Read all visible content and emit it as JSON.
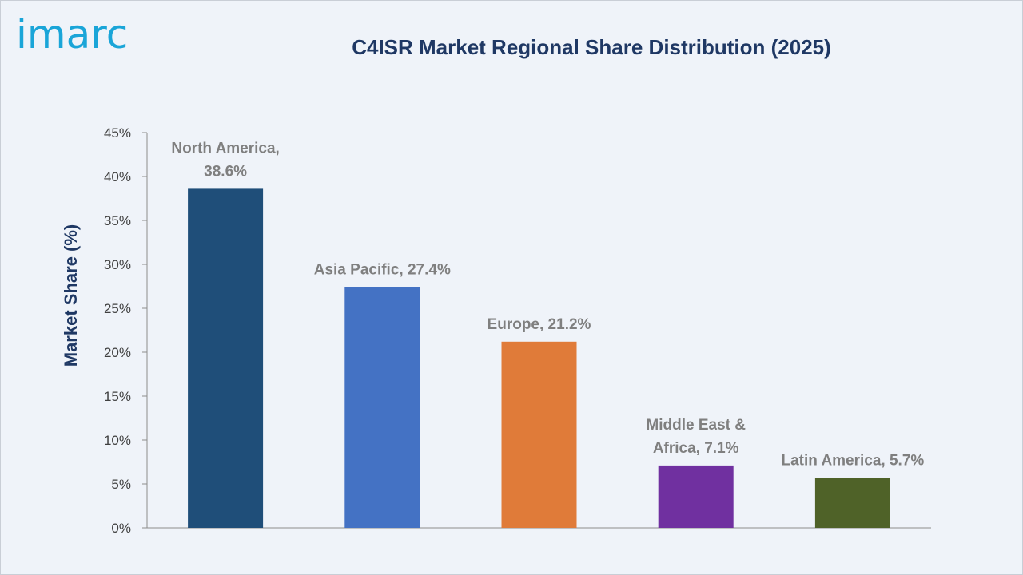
{
  "brand": {
    "logo_text": "imarc",
    "logo_color": "#1aa5d8"
  },
  "chart_data": {
    "type": "bar",
    "title": "C4ISR Market Regional Share Distribution (2025)",
    "ylabel": "Market Share (%)",
    "xlabel": "",
    "ylim": [
      0,
      45
    ],
    "yticks": [
      0,
      5,
      10,
      15,
      20,
      25,
      30,
      35,
      40,
      45
    ],
    "ytick_labels": [
      "0%",
      "5%",
      "10%",
      "15%",
      "20%",
      "25%",
      "30%",
      "35%",
      "40%",
      "45%"
    ],
    "categories": [
      "North America",
      "Asia Pacific",
      "Europe",
      "Middle East & Africa",
      "Latin America"
    ],
    "values": [
      38.6,
      27.4,
      21.2,
      7.1,
      5.7
    ],
    "data_labels": [
      [
        "North America,",
        "38.6%"
      ],
      [
        "Asia Pacific, 27.4%"
      ],
      [
        "Europe, 21.2%"
      ],
      [
        "Middle East &",
        "Africa, 7.1%"
      ],
      [
        "Latin America, 5.7%"
      ]
    ],
    "colors": [
      "#1f4e79",
      "#4472c4",
      "#e07b39",
      "#7030a0",
      "#4f6228"
    ],
    "grid": false,
    "legend": "none"
  }
}
